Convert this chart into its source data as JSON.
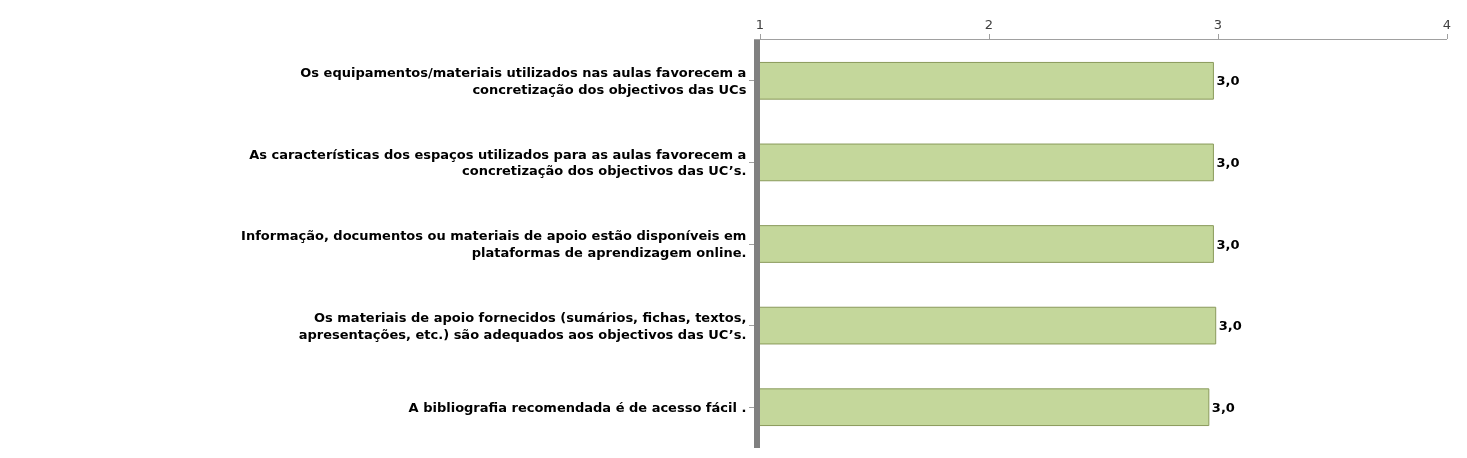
{
  "chart_data": {
    "type": "bar",
    "orientation": "horizontal",
    "categories": [
      "Os equipamentos/materiais utilizados nas aulas favorecem a concretização dos objectivos das UCs",
      "As características dos espaços utilizados para as aulas favorecem a concretização dos objectivos das UC’s.",
      "Informação, documentos ou materiais de apoio estão disponíveis em plataformas de aprendizagem online.",
      "Os materiais de apoio fornecidos (sumários, fichas, textos, apresentações, etc.) são adequados aos objectivos das UC’s.",
      "A bibliografia recomendada é de acesso fácil ."
    ],
    "values": [
      2.98,
      2.98,
      2.98,
      2.99,
      2.96
    ],
    "value_labels": [
      "3,0",
      "3,0",
      "3,0",
      "3,0",
      "3,0"
    ],
    "color": "#c4d79b",
    "xlim": [
      1,
      4
    ],
    "xticks": [
      1,
      2,
      3,
      4
    ]
  }
}
